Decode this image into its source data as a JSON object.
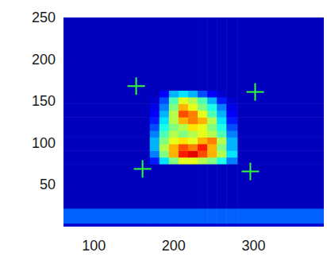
{
  "chart_data": {
    "type": "heatmap",
    "xlim": [
      62,
      388
    ],
    "ylim": [
      0,
      250
    ],
    "xticks": [
      100,
      200,
      300
    ],
    "yticks": [
      50,
      100,
      150,
      200,
      250
    ],
    "x_edges": [
      62,
      170,
      182,
      194,
      206,
      218,
      230,
      242,
      254,
      266,
      280,
      388
    ],
    "y_edges": [
      0,
      4,
      22,
      75,
      83,
      91,
      99,
      107,
      115,
      123,
      131,
      139,
      147,
      155,
      163,
      250
    ],
    "color_range": [
      0,
      1
    ],
    "z": [
      [
        0.08,
        0.08,
        0.08,
        0.08,
        0.08,
        0.08,
        0.08,
        0.08,
        0.08,
        0.08,
        0.08
      ],
      [
        0.22,
        0.22,
        0.22,
        0.22,
        0.22,
        0.22,
        0.22,
        0.22,
        0.22,
        0.22,
        0.22
      ],
      [
        0.06,
        0.06,
        0.06,
        0.06,
        0.06,
        0.06,
        0.06,
        0.06,
        0.06,
        0.06,
        0.06
      ],
      [
        0.06,
        0.15,
        0.35,
        0.5,
        0.6,
        0.6,
        0.55,
        0.5,
        0.4,
        0.25,
        0.06
      ],
      [
        0.06,
        0.25,
        0.5,
        0.7,
        0.85,
        0.9,
        0.8,
        0.7,
        0.55,
        0.35,
        0.06
      ],
      [
        0.06,
        0.3,
        0.55,
        0.7,
        0.8,
        0.75,
        0.85,
        0.7,
        0.5,
        0.3,
        0.06
      ],
      [
        0.06,
        0.3,
        0.5,
        0.6,
        0.65,
        0.6,
        0.7,
        0.75,
        0.55,
        0.3,
        0.06
      ],
      [
        0.06,
        0.25,
        0.45,
        0.55,
        0.5,
        0.55,
        0.6,
        0.55,
        0.45,
        0.25,
        0.06
      ],
      [
        0.06,
        0.2,
        0.4,
        0.5,
        0.55,
        0.65,
        0.6,
        0.5,
        0.4,
        0.2,
        0.06
      ],
      [
        0.06,
        0.15,
        0.35,
        0.55,
        0.7,
        0.75,
        0.7,
        0.55,
        0.35,
        0.15,
        0.06
      ],
      [
        0.06,
        0.12,
        0.3,
        0.55,
        0.8,
        0.75,
        0.6,
        0.45,
        0.3,
        0.12,
        0.06
      ],
      [
        0.06,
        0.1,
        0.25,
        0.5,
        0.7,
        0.6,
        0.5,
        0.4,
        0.25,
        0.1,
        0.06
      ],
      [
        0.06,
        0.08,
        0.2,
        0.45,
        0.6,
        0.55,
        0.45,
        0.3,
        0.15,
        0.08,
        0.06
      ],
      [
        0.06,
        0.06,
        0.12,
        0.3,
        0.35,
        0.3,
        0.2,
        0.12,
        0.08,
        0.06,
        0.06
      ],
      [
        0.06,
        0.06,
        0.06,
        0.06,
        0.06,
        0.06,
        0.06,
        0.06,
        0.06,
        0.06,
        0.06
      ]
    ],
    "series": [
      {
        "type": "scatter",
        "marker": "plus",
        "color": "#33ff33",
        "x": [
          153,
          302,
          161,
          296
        ],
        "values": [
          168,
          161,
          69,
          66
        ]
      }
    ]
  }
}
